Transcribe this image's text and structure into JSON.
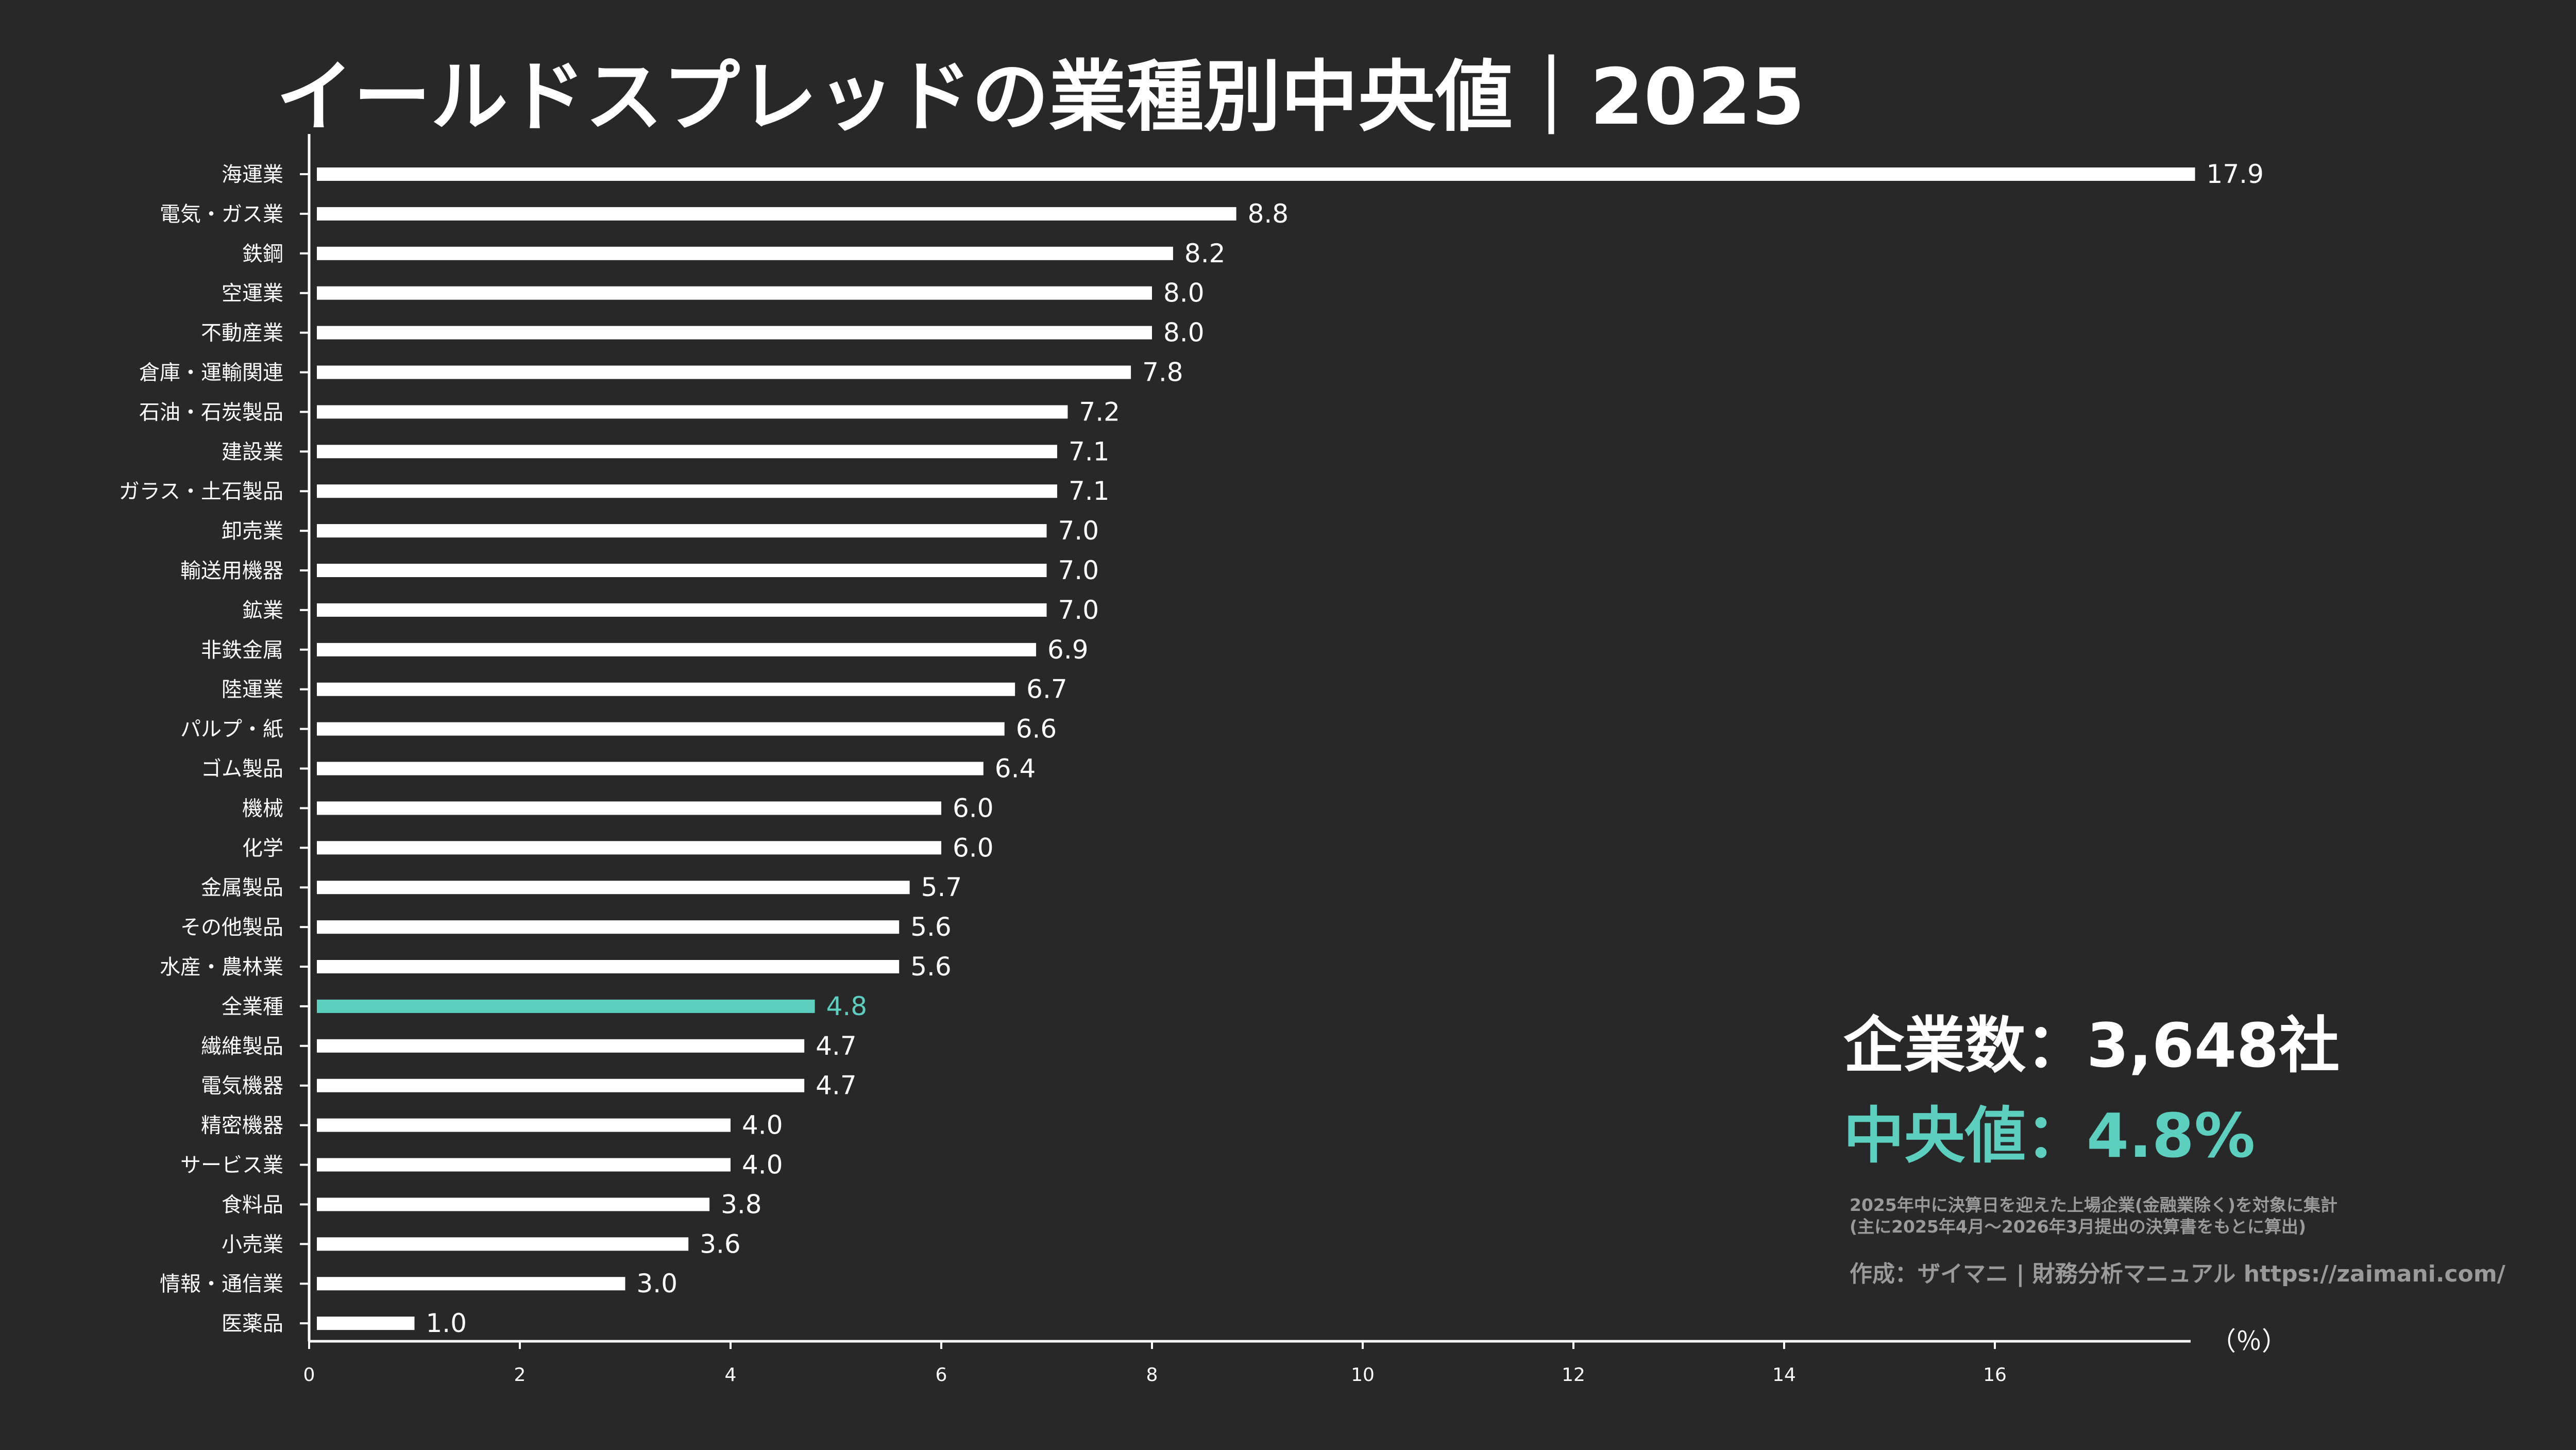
{
  "chart_data": {
    "type": "bar",
    "orientation": "horizontal",
    "title": "イールドスプレッドの業種別中央値｜2025",
    "xlabel": "（％）",
    "ylabel": "",
    "xlim": [
      0,
      17.9
    ],
    "xticks": [
      0,
      2,
      4,
      6,
      8,
      10,
      12,
      14,
      16
    ],
    "grid": false,
    "bar_color": "#ffffff",
    "highlight_color": "#5ccfbf",
    "highlight_category": "全業種",
    "categories": [
      "海運業",
      "電気・ガス業",
      "鉄鋼",
      "空運業",
      "不動産業",
      "倉庫・運輸関連",
      "石油・石炭製品",
      "建設業",
      "ガラス・土石製品",
      "卸売業",
      "輸送用機器",
      "鉱業",
      "非鉄金属",
      "陸運業",
      "パルプ・紙",
      "ゴム製品",
      "機械",
      "化学",
      "金属製品",
      "その他製品",
      "水産・農林業",
      "全業種",
      "繊維製品",
      "電気機器",
      "精密機器",
      "サービス業",
      "食料品",
      "小売業",
      "情報・通信業",
      "医薬品"
    ],
    "values": [
      17.9,
      8.8,
      8.2,
      8.0,
      8.0,
      7.8,
      7.2,
      7.1,
      7.1,
      7.0,
      7.0,
      7.0,
      6.9,
      6.7,
      6.6,
      6.4,
      6.0,
      6.0,
      5.7,
      5.6,
      5.6,
      4.8,
      4.7,
      4.7,
      4.0,
      4.0,
      3.8,
      3.6,
      3.0,
      1.0
    ],
    "value_labels": [
      "17.9",
      "8.8",
      "8.2",
      "8.0",
      "8.0",
      "7.8",
      "7.2",
      "7.1",
      "7.1",
      "7.0",
      "7.0",
      "7.0",
      "6.9",
      "6.7",
      "6.6",
      "6.4",
      "6.0",
      "6.0",
      "5.7",
      "5.6",
      "5.6",
      "4.8",
      "4.7",
      "4.7",
      "4.0",
      "4.0",
      "3.8",
      "3.6",
      "3.0",
      "1.0"
    ]
  },
  "annotations": {
    "company_count": "企業数：3,648社",
    "median": "中央値：4.8%",
    "note_line1": "2025年中に決算日を迎えた上場企業(金融業除く)を対象に集計",
    "note_line2": "(主に2025年4月～2026年3月提出の決算書をもとに算出)",
    "credit": "作成：ザイマニ | 財務分析マニュアル https://zaimani.com/"
  }
}
